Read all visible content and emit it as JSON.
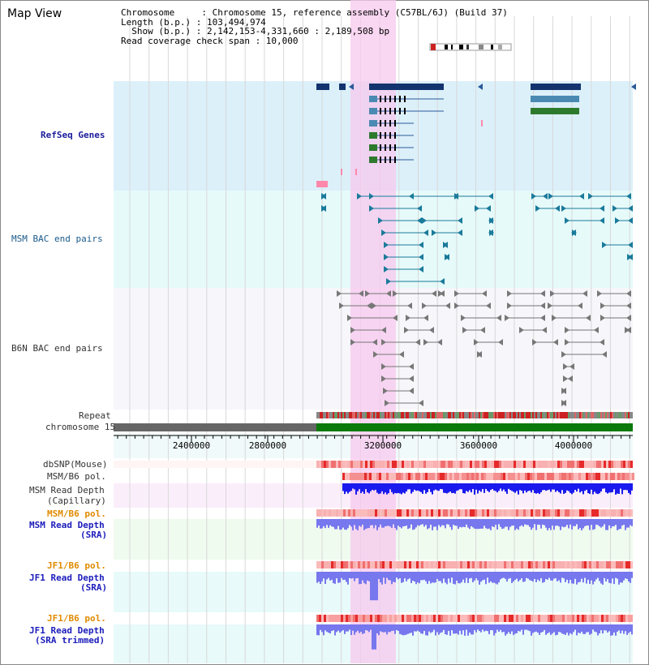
{
  "view_title": "Map View",
  "info": {
    "chromosome": "Chromosome     : Chromosome 15, reference assembly (C57BL/6J) (Build 37)",
    "length": "Length (b.p.) : 103,494,974",
    "show": "  Show (b.p.) : 2,142,153-4,331,660 : 2,189,508 bp",
    "coverage": "Read coverage check span : 10,000"
  },
  "tracks": {
    "refseq": "RefSeq Genes",
    "msm_bac": "MSM BAC end pairs",
    "b6n_bac": "B6N BAC end pairs",
    "repeat": "Repeat",
    "chromosome": "chromosome 15",
    "dbsnp": "dbSNP(Mouse)",
    "msm_b6_pol": "MSM/B6 pol.",
    "msm_read_depth_1": "MSM Read Depth",
    "msm_read_depth_1_sub": "(Capillary)",
    "msm_b6_pol_2": "MSM/B6 pol.",
    "msm_read_depth_2": "MSM Read Depth",
    "msm_read_depth_2_sub": "(SRA)",
    "jf1_b6_pol": "JF1/B6 pol.",
    "jf1_read_depth": "JF1 Read Depth",
    "jf1_read_depth_sub": "(SRA)",
    "jf1_b6_pol_2": "JF1/B6 pol.",
    "jf1_read_depth_trim": "JF1 Read Depth",
    "jf1_read_depth_trim_sub": "(SRA trimmed)"
  },
  "axis": {
    "ticks": [
      "2400000",
      "2800000",
      "3200000",
      "3600000",
      "4000000"
    ]
  },
  "colors": {
    "refseq_bg": "#dcf0fa",
    "bac_bg": "#e6fafa",
    "highlight": "#f7c8ee",
    "chrom_grey": "#666666",
    "chrom_green": "#0a7a0a",
    "depth_blue": "#1a1aee",
    "depth_light": "#7777ee"
  }
}
